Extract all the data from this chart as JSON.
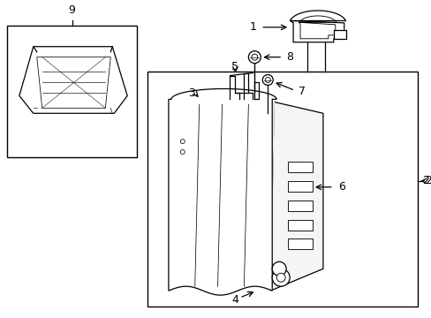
{
  "background_color": "#ffffff",
  "line_color": "#000000",
  "figure_width": 4.89,
  "figure_height": 3.6,
  "dpi": 100
}
